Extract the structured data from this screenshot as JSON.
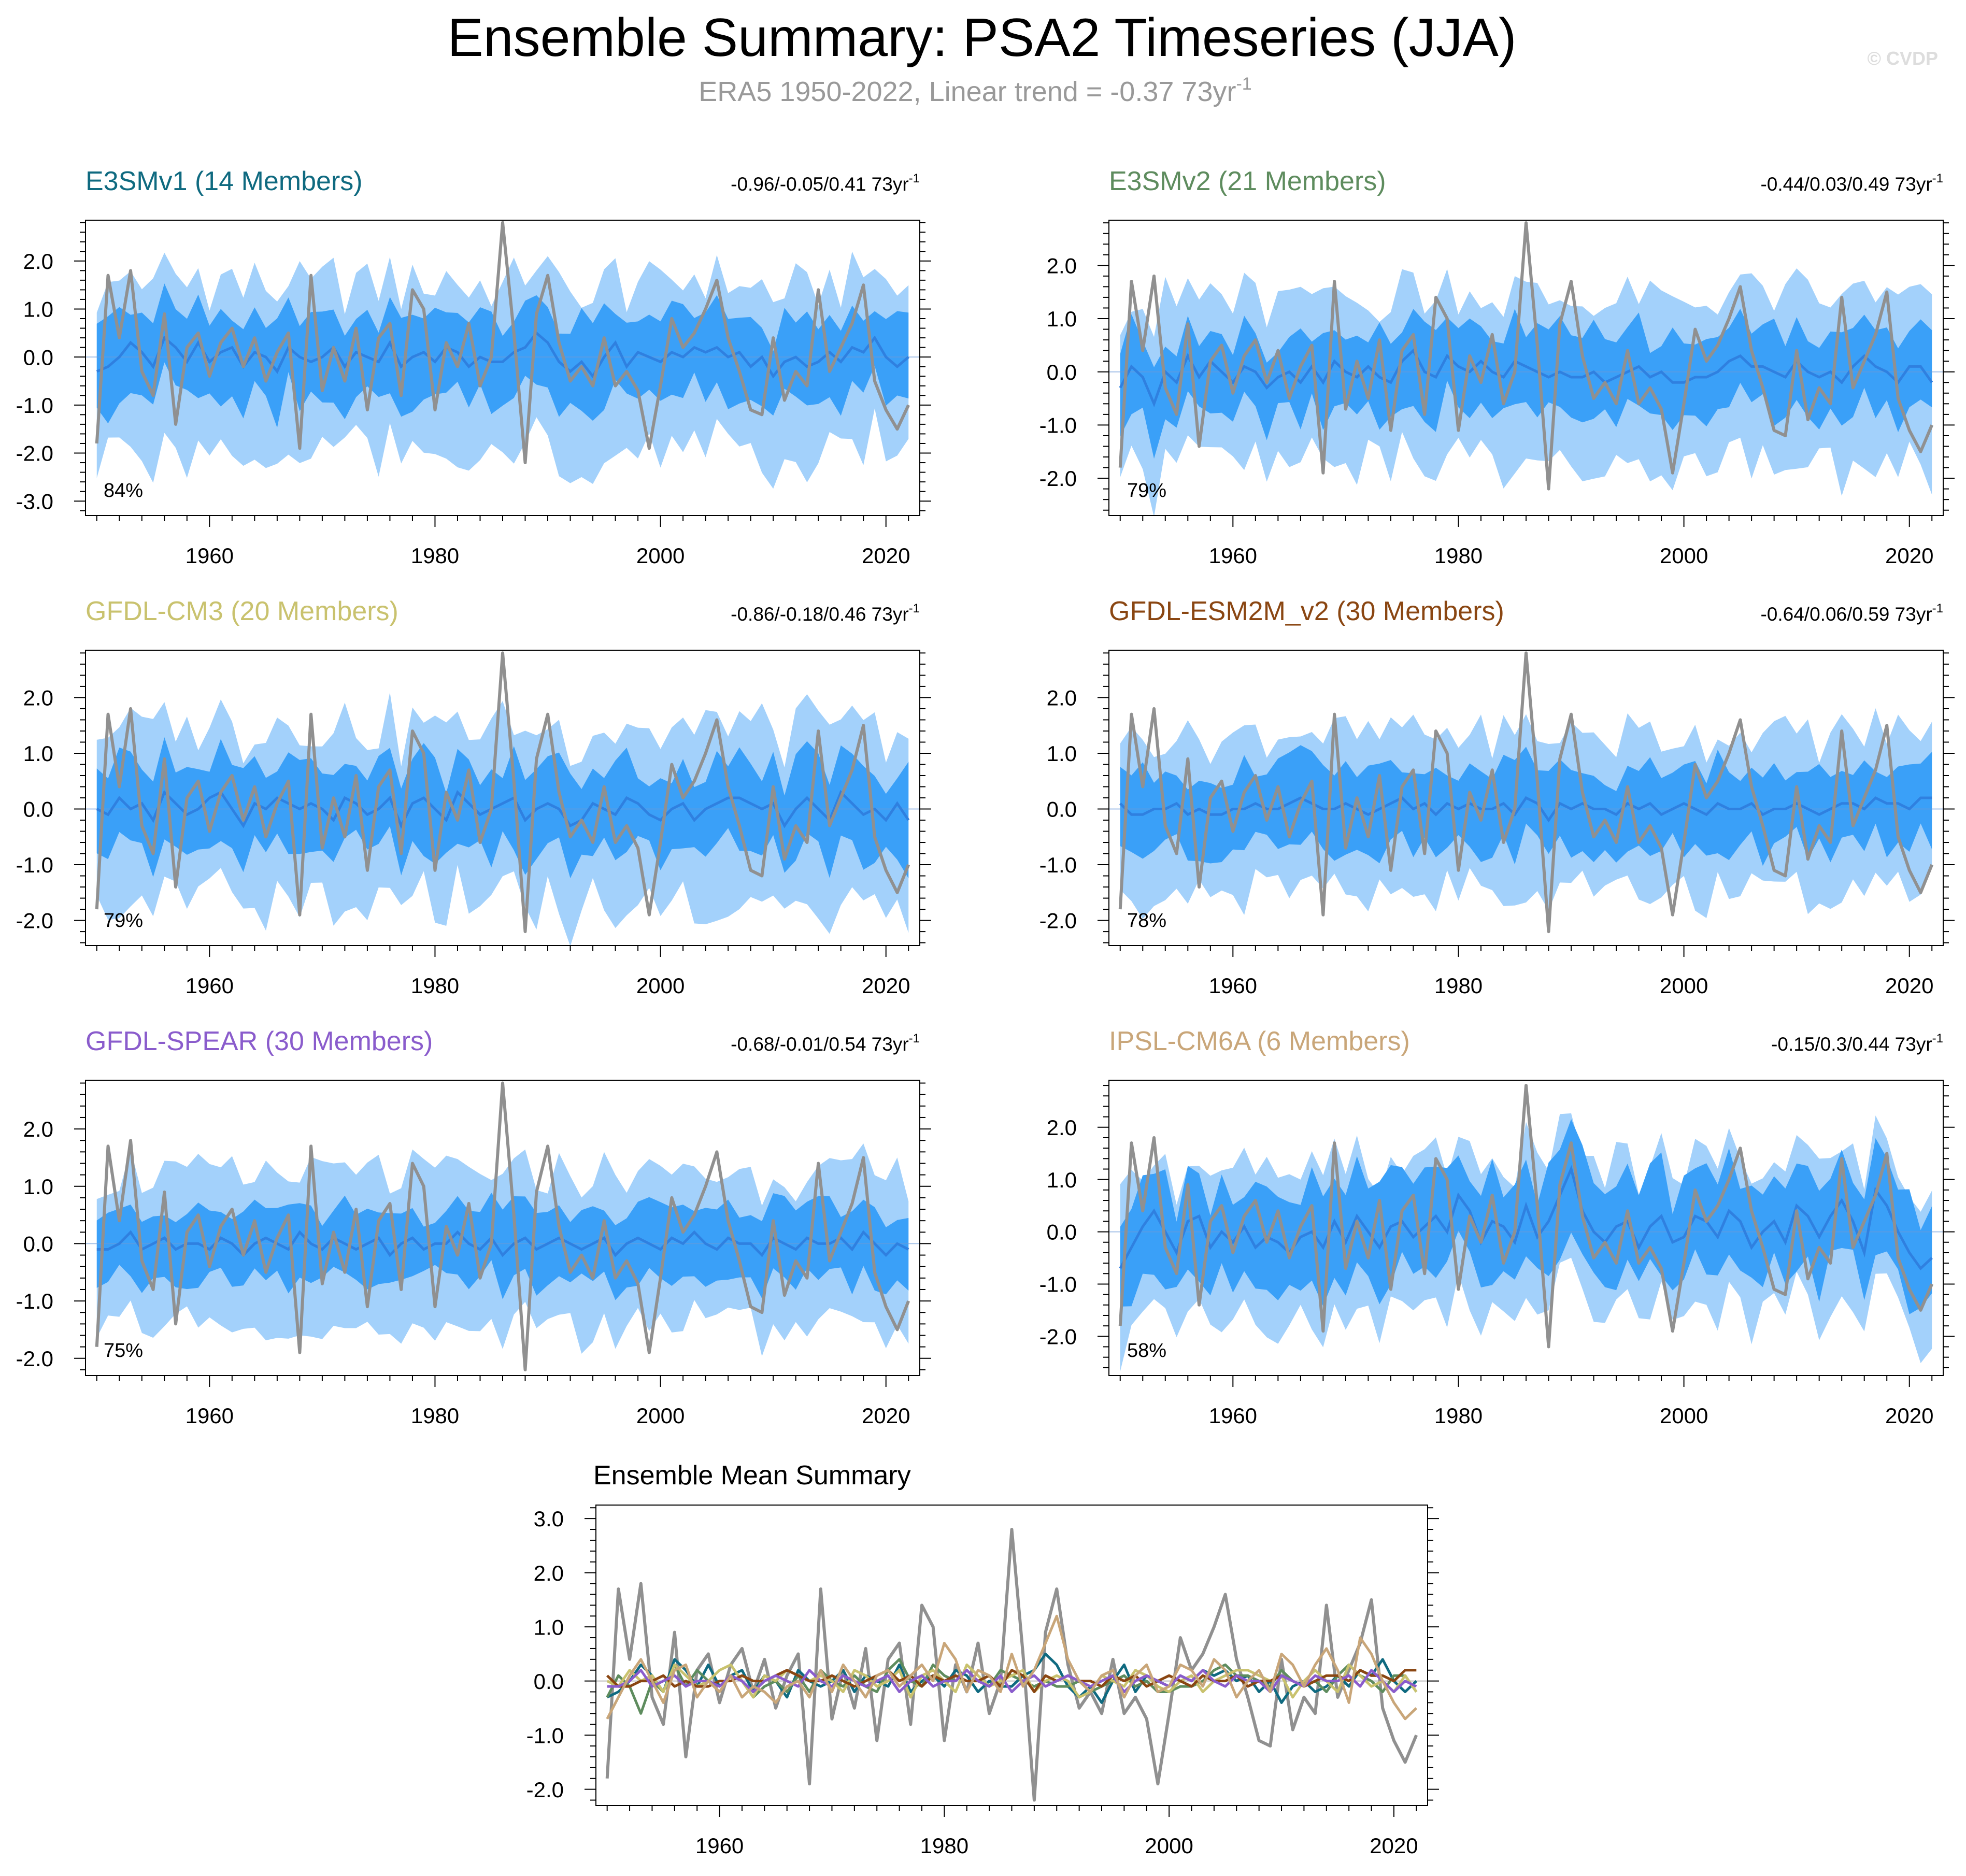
{
  "title": "Ensemble Summary: PSA2 Timeseries (JJA)",
  "subtitle": "ERA5 1950-2022, Linear trend = -0.37 73yr",
  "subtitle_exponent": "-1",
  "watermark": "© CVDP",
  "trend_unit": "73yr",
  "trend_unit_exponent": "-1",
  "colors": {
    "obs": "#909090",
    "inner_band": "#3aa0f8",
    "outer_band": "#a3d1fb",
    "mean_line": "#2f80e0",
    "E3SMv1": "#0f6a80",
    "E3SMv2": "#5e8c5e",
    "GFDL-CM3": "#c9c26e",
    "GFDL-ESM2M_v2": "#8a4612",
    "GFDL-SPEAR": "#8a5ccc",
    "IPSL-CM6A": "#c9a679"
  },
  "chart_data": {
    "type": "line",
    "x_range": [
      1949,
      2023
    ],
    "x_ticks": [
      1960,
      1980,
      2000,
      2020
    ],
    "observation": {
      "name": "ERA5",
      "years": [
        1950,
        2022
      ],
      "values": [
        -1.8,
        1.7,
        0.4,
        1.8,
        -0.3,
        -0.8,
        0.9,
        -1.4,
        0.2,
        0.5,
        -0.4,
        0.3,
        0.6,
        -0.2,
        0.4,
        -0.5,
        0.1,
        0.5,
        -1.9,
        1.7,
        -0.7,
        0.2,
        -0.5,
        0.6,
        -1.1,
        0.4,
        0.7,
        -0.8,
        1.4,
        1.0,
        -1.1,
        0.3,
        -0.2,
        0.7,
        -0.6,
        0.0,
        2.8,
        0.5,
        -2.2,
        0.9,
        1.7,
        0.3,
        -0.5,
        -0.2,
        -0.6,
        0.4,
        -0.6,
        -0.3,
        -0.7,
        -1.9,
        -0.6,
        0.8,
        0.2,
        0.5,
        1.0,
        1.6,
        0.4,
        -0.3,
        -1.1,
        -1.2,
        0.4,
        -0.9,
        -0.3,
        -0.6,
        1.4,
        -0.3,
        0.2,
        0.7,
        1.5,
        -0.5,
        -1.1,
        -1.5,
        -1.0
      ]
    },
    "panels": [
      {
        "model": "E3SMv1",
        "members": "14",
        "title": "E3SMv1 (14 Members)",
        "trend": "-0.96/-0.05/0.41",
        "percent": "84%",
        "y_range": [
          -3.3,
          2.85
        ],
        "y_ticks": [
          2.0,
          1.0,
          0.0,
          -1.0,
          -2.0,
          -3.0
        ],
        "y_tick_labels": [
          "2.0",
          "1.0",
          "0.0",
          "-1.0",
          "-2.0",
          "-3.0"
        ],
        "inner_halfwidth": 0.85,
        "outer_halfwidth": 1.6,
        "outer_offset": -0.35,
        "mean": [
          -0.3,
          -0.2,
          0.0,
          0.3,
          0.1,
          -0.2,
          0.4,
          0.2,
          -0.1,
          0.3,
          -0.1,
          0.1,
          0.2,
          -0.2,
          0.1,
          0.0,
          -0.3,
          0.2,
          0.0,
          -0.1,
          0.0,
          0.2,
          -0.2,
          0.1,
          0.0,
          -0.1,
          0.3,
          -0.2,
          0.0,
          0.1,
          -0.1,
          0.2,
          0.1,
          -0.2,
          0.0,
          -0.1,
          -0.1,
          0.1,
          0.2,
          0.5,
          0.3,
          -0.1,
          -0.3,
          -0.1,
          -0.4,
          0.0,
          0.3,
          -0.2,
          0.1,
          0.0,
          -0.1,
          0.1,
          0.0,
          0.2,
          0.1,
          0.2,
          0.0,
          0.1,
          -0.2,
          0.0,
          -0.4,
          -0.1,
          0.0,
          -0.2,
          -0.1,
          0.1,
          -0.1,
          0.2,
          0.1,
          0.4,
          0.0,
          -0.2,
          0.0
        ]
      },
      {
        "model": "E3SMv2",
        "members": "21",
        "title": "E3SMv2 (21 Members)",
        "trend": "-0.44/0.03/0.49",
        "percent": "79%",
        "y_range": [
          -2.7,
          2.85
        ],
        "y_ticks": [
          2.0,
          1.0,
          0.0,
          -1.0,
          -2.0
        ],
        "y_tick_labels": [
          "2.0",
          "1.0",
          "0.0",
          "-1.0",
          "-2.0"
        ],
        "inner_halfwidth": 0.75,
        "outer_halfwidth": 1.45,
        "outer_offset": -0.25,
        "mean": [
          -0.3,
          0.1,
          -0.1,
          -0.6,
          0.0,
          -0.2,
          0.3,
          -0.1,
          0.2,
          0.0,
          -0.2,
          0.1,
          0.0,
          -0.3,
          -0.1,
          0.0,
          -0.2,
          0.1,
          -0.2,
          0.2,
          0.0,
          -0.1,
          0.1,
          -0.1,
          -0.2,
          0.2,
          0.4,
          0.0,
          -0.1,
          0.3,
          0.1,
          0.0,
          0.2,
          0.0,
          -0.1,
          0.2,
          0.1,
          0.0,
          -0.1,
          0.0,
          -0.1,
          -0.1,
          0.0,
          -0.2,
          -0.1,
          0.0,
          0.1,
          -0.1,
          0.0,
          -0.2,
          -0.2,
          -0.1,
          -0.1,
          0.0,
          0.2,
          0.3,
          0.1,
          0.1,
          0.0,
          -0.1,
          0.2,
          0.0,
          -0.1,
          0.0,
          -0.2,
          0.1,
          0.3,
          0.1,
          0.0,
          -0.2,
          0.1,
          0.1,
          -0.2
        ]
      },
      {
        "model": "GFDL-CM3",
        "members": "20",
        "title": "GFDL-CM3 (20 Members)",
        "trend": "-0.86/-0.18/0.46",
        "percent": "79%",
        "y_range": [
          -2.45,
          2.85
        ],
        "y_ticks": [
          2.0,
          1.0,
          0.0,
          -1.0,
          -2.0
        ],
        "y_tick_labels": [
          "2.0",
          "1.0",
          "0.0",
          "-1.0",
          "-2.0"
        ],
        "inner_halfwidth": 0.75,
        "outer_halfwidth": 1.5,
        "outer_offset": -0.25,
        "mean": [
          0.0,
          -0.1,
          0.2,
          0.0,
          0.1,
          -0.2,
          0.3,
          0.1,
          -0.1,
          0.0,
          0.2,
          0.3,
          0.0,
          -0.3,
          0.1,
          0.0,
          0.2,
          0.1,
          0.0,
          0.1,
          0.0,
          -0.2,
          0.2,
          0.1,
          -0.1,
          0.0,
          0.2,
          -0.3,
          0.1,
          0.2,
          0.0,
          -0.2,
          0.3,
          0.1,
          -0.1,
          0.0,
          0.1,
          0.2,
          -0.2,
          0.0,
          0.1,
          0.0,
          -0.3,
          -0.2,
          0.1,
          0.0,
          -0.1,
          0.2,
          0.1,
          -0.1,
          -0.2,
          0.0,
          0.1,
          -0.2,
          0.0,
          0.1,
          0.2,
          0.2,
          0.1,
          0.0,
          0.1,
          -0.3,
          0.0,
          0.2,
          0.0,
          -0.2,
          0.3,
          0.1,
          -0.1,
          0.0,
          -0.2,
          0.1,
          -0.2
        ]
      },
      {
        "model": "GFDL-ESM2M_v2",
        "members": "30",
        "title": "GFDL-ESM2M_v2 (30 Members)",
        "trend": "-0.64/0.06/0.59",
        "percent": "78%",
        "y_range": [
          -2.45,
          2.85
        ],
        "y_ticks": [
          2.0,
          1.0,
          0.0,
          -1.0,
          -2.0
        ],
        "y_tick_labels": [
          "2.0",
          "1.0",
          "0.0",
          "-1.0",
          "-2.0"
        ],
        "inner_halfwidth": 0.7,
        "outer_halfwidth": 1.35,
        "outer_offset": -0.2,
        "mean": [
          0.1,
          -0.1,
          -0.1,
          0.0,
          0.0,
          0.1,
          -0.1,
          0.0,
          -0.1,
          -0.1,
          0.0,
          0.0,
          0.1,
          0.0,
          0.0,
          0.1,
          0.2,
          0.1,
          0.0,
          0.0,
          0.1,
          0.0,
          -0.1,
          0.0,
          0.1,
          0.2,
          0.0,
          0.1,
          -0.1,
          0.1,
          0.0,
          0.1,
          0.0,
          0.0,
          0.1,
          -0.1,
          0.2,
          0.1,
          -0.2,
          0.1,
          0.0,
          0.1,
          0.0,
          0.0,
          -0.1,
          0.1,
          0.0,
          0.1,
          -0.1,
          0.0,
          0.1,
          0.0,
          -0.1,
          0.1,
          0.0,
          0.0,
          0.1,
          -0.1,
          0.0,
          0.0,
          0.1,
          0.0,
          -0.1,
          0.0,
          0.1,
          0.1,
          0.0,
          0.2,
          0.1,
          0.1,
          0.0,
          0.2,
          0.2
        ]
      },
      {
        "model": "GFDL-SPEAR",
        "members": "30",
        "title": "GFDL-SPEAR (30 Members)",
        "trend": "-0.68/-0.01/0.54",
        "percent": "75%",
        "y_range": [
          -2.3,
          2.85
        ],
        "y_ticks": [
          2.0,
          1.0,
          0.0,
          -1.0,
          -2.0
        ],
        "y_tick_labels": [
          "2.0",
          "1.0",
          "0.0",
          "-1.0",
          "-2.0"
        ],
        "inner_halfwidth": 0.6,
        "outer_halfwidth": 1.25,
        "outer_offset": -0.2,
        "mean": [
          -0.1,
          -0.1,
          0.0,
          0.2,
          -0.1,
          0.0,
          0.1,
          -0.1,
          0.0,
          0.0,
          -0.1,
          0.1,
          0.0,
          -0.2,
          0.0,
          0.1,
          0.0,
          -0.1,
          0.2,
          0.0,
          -0.1,
          0.1,
          0.0,
          -0.1,
          0.0,
          0.1,
          -0.2,
          0.0,
          0.1,
          -0.1,
          0.0,
          0.0,
          0.2,
          0.0,
          -0.1,
          0.1,
          -0.2,
          0.0,
          0.1,
          -0.1,
          0.0,
          0.1,
          0.0,
          -0.1,
          0.0,
          0.1,
          -0.2,
          0.0,
          0.1,
          0.0,
          -0.1,
          0.1,
          0.0,
          0.2,
          0.0,
          -0.1,
          0.1,
          0.0,
          0.0,
          -0.2,
          0.1,
          0.0,
          -0.1,
          0.1,
          0.0,
          0.0,
          0.1,
          -0.1,
          0.2,
          0.0,
          -0.2,
          0.0,
          -0.1
        ]
      },
      {
        "model": "IPSL-CM6A",
        "members": "6",
        "title": "IPSL-CM6A (6 Members)",
        "trend": "-0.15/0.3/0.44",
        "percent": "58%",
        "y_range": [
          -2.75,
          2.9
        ],
        "y_ticks": [
          2.0,
          1.0,
          0.0,
          -1.0,
          -2.0
        ],
        "y_tick_labels": [
          "2.0",
          "1.0",
          "0.0",
          "-1.0",
          "-2.0"
        ],
        "inner_halfwidth": 0.9,
        "outer_halfwidth": 1.3,
        "outer_offset": -0.3,
        "mean": [
          -0.7,
          -0.3,
          0.1,
          0.4,
          0.0,
          -0.4,
          0.2,
          0.3,
          -0.3,
          0.0,
          -0.2,
          0.1,
          -0.3,
          -0.1,
          -0.2,
          -0.4,
          -0.1,
          0.0,
          -0.3,
          0.2,
          -0.2,
          0.3,
          0.0,
          -0.3,
          0.1,
          0.2,
          -0.1,
          0.1,
          0.3,
          0.0,
          0.7,
          0.4,
          -0.2,
          0.2,
          0.1,
          -0.2,
          0.5,
          -0.1,
          0.2,
          0.7,
          1.2,
          0.4,
          0.0,
          -0.2,
          0.1,
          0.2,
          -0.3,
          0.1,
          0.3,
          -0.2,
          -0.1,
          0.3,
          0.2,
          -0.1,
          0.4,
          0.2,
          -0.3,
          0.0,
          0.2,
          -0.2,
          0.5,
          0.3,
          -0.1,
          0.3,
          0.6,
          0.2,
          -0.4,
          0.8,
          0.5,
          0.0,
          -0.4,
          -0.7,
          -0.5
        ]
      }
    ],
    "summary": {
      "title": "Ensemble Mean Summary",
      "y_range": [
        -2.3,
        3.25
      ],
      "y_ticks": [
        3.0,
        2.0,
        1.0,
        0.0,
        -1.0,
        -2.0
      ],
      "y_tick_labels": [
        "3.0",
        "2.0",
        "1.0",
        "0.0",
        "-1.0",
        "-2.0"
      ],
      "series_order": [
        "E3SMv1",
        "E3SMv2",
        "GFDL-CM3",
        "GFDL-ESM2M_v2",
        "GFDL-SPEAR",
        "IPSL-CM6A"
      ]
    }
  }
}
